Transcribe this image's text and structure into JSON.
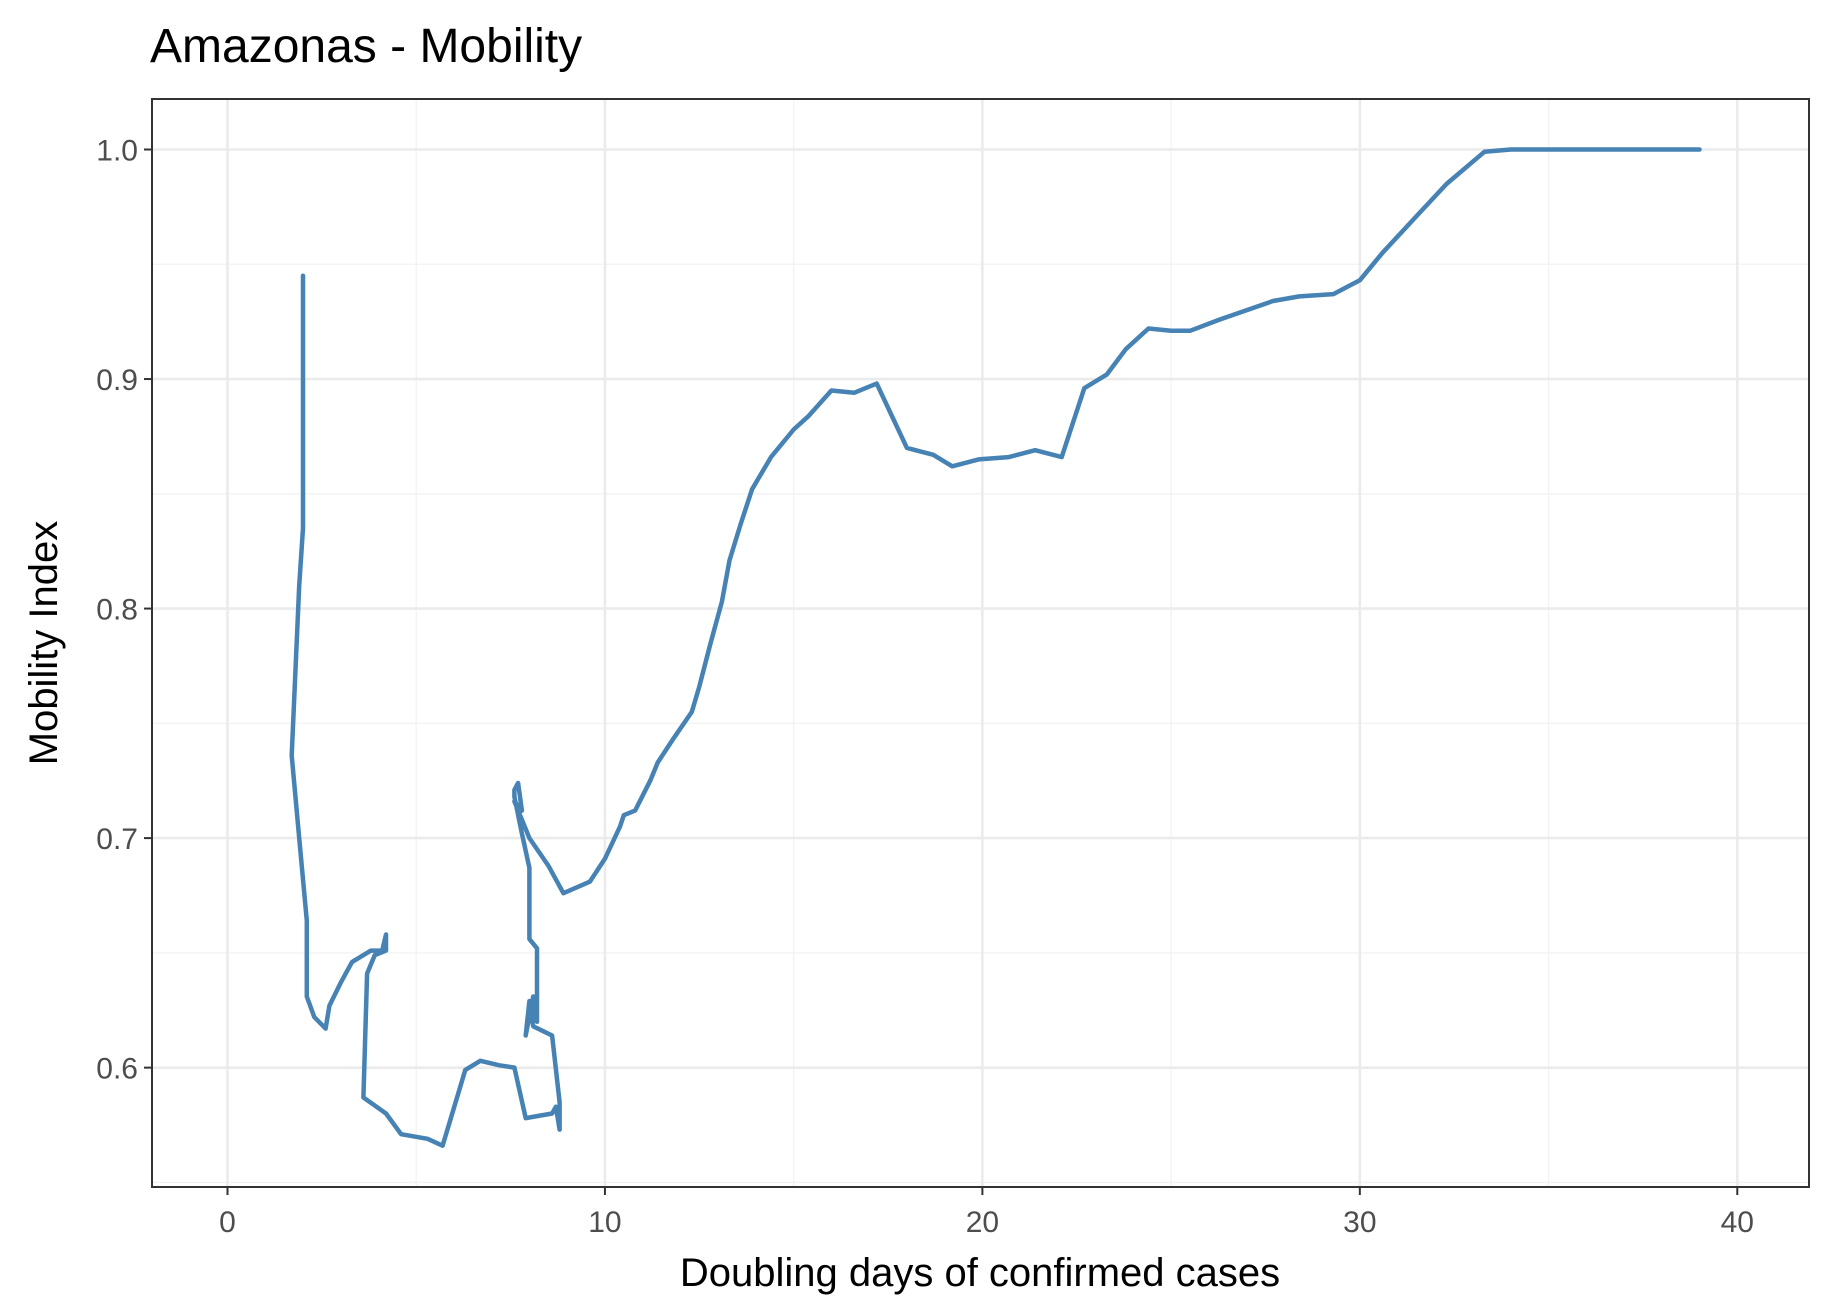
{
  "chart_data": {
    "type": "line",
    "title": "Amazonas - Mobility",
    "xlabel": "Doubling days of confirmed cases",
    "ylabel": "Mobility Index",
    "xlim": [
      -2,
      41.9
    ],
    "ylim": [
      0.548,
      1.022
    ],
    "xticks": [
      0,
      10,
      20,
      30,
      40
    ],
    "xtick_labels": [
      "0",
      "10",
      "20",
      "30",
      "40"
    ],
    "yticks": [
      0.6,
      0.7,
      0.8,
      0.9,
      1.0
    ],
    "ytick_labels": [
      "0.6",
      "0.7",
      "0.8",
      "0.9",
      "1.0"
    ],
    "xminor": [
      5,
      15,
      25,
      35
    ],
    "yminor": [
      0.55,
      0.65,
      0.75,
      0.85,
      0.95
    ],
    "grid": true,
    "legend": "none",
    "series": [
      {
        "color": "#4682b4",
        "points": [
          [
            2.0,
            0.945
          ],
          [
            2.0,
            0.835
          ],
          [
            1.9,
            0.81
          ],
          [
            1.7,
            0.736
          ],
          [
            1.9,
            0.7
          ],
          [
            2.1,
            0.664
          ],
          [
            2.1,
            0.631
          ],
          [
            2.3,
            0.622
          ],
          [
            2.6,
            0.617
          ],
          [
            2.7,
            0.627
          ],
          [
            3.0,
            0.637
          ],
          [
            3.3,
            0.646
          ],
          [
            3.8,
            0.651
          ],
          [
            4.1,
            0.651
          ],
          [
            4.2,
            0.658
          ],
          [
            4.2,
            0.651
          ],
          [
            3.9,
            0.649
          ],
          [
            3.7,
            0.641
          ],
          [
            3.6,
            0.587
          ],
          [
            4.2,
            0.58
          ],
          [
            4.6,
            0.571
          ],
          [
            5.3,
            0.569
          ],
          [
            5.7,
            0.566
          ],
          [
            6.3,
            0.599
          ],
          [
            6.7,
            0.603
          ],
          [
            7.2,
            0.601
          ],
          [
            7.6,
            0.6
          ],
          [
            7.9,
            0.578
          ],
          [
            8.6,
            0.58
          ],
          [
            8.7,
            0.583
          ],
          [
            8.8,
            0.573
          ],
          [
            8.8,
            0.585
          ],
          [
            8.6,
            0.614
          ],
          [
            8.1,
            0.618
          ],
          [
            8.0,
            0.629
          ],
          [
            7.9,
            0.614
          ],
          [
            8.1,
            0.631
          ],
          [
            8.2,
            0.62
          ],
          [
            8.2,
            0.652
          ],
          [
            8.0,
            0.656
          ],
          [
            8.0,
            0.687
          ],
          [
            7.8,
            0.702
          ],
          [
            7.6,
            0.718
          ],
          [
            7.6,
            0.721
          ],
          [
            7.7,
            0.724
          ],
          [
            7.8,
            0.712
          ],
          [
            7.6,
            0.716
          ],
          [
            8.0,
            0.7
          ],
          [
            8.5,
            0.688
          ],
          [
            8.9,
            0.676
          ],
          [
            9.6,
            0.681
          ],
          [
            10.0,
            0.691
          ],
          [
            10.4,
            0.705
          ],
          [
            10.5,
            0.71
          ],
          [
            10.8,
            0.712
          ],
          [
            11.2,
            0.725
          ],
          [
            11.4,
            0.733
          ],
          [
            11.8,
            0.743
          ],
          [
            12.3,
            0.755
          ],
          [
            12.5,
            0.766
          ],
          [
            12.8,
            0.785
          ],
          [
            13.1,
            0.803
          ],
          [
            13.3,
            0.821
          ],
          [
            13.6,
            0.837
          ],
          [
            13.9,
            0.852
          ],
          [
            14.4,
            0.866
          ],
          [
            15.0,
            0.878
          ],
          [
            15.4,
            0.884
          ],
          [
            16.0,
            0.895
          ],
          [
            16.6,
            0.894
          ],
          [
            17.2,
            0.898
          ],
          [
            18.0,
            0.87
          ],
          [
            18.7,
            0.867
          ],
          [
            19.2,
            0.862
          ],
          [
            19.9,
            0.865
          ],
          [
            20.7,
            0.866
          ],
          [
            21.4,
            0.869
          ],
          [
            22.1,
            0.866
          ],
          [
            22.7,
            0.896
          ],
          [
            23.3,
            0.902
          ],
          [
            23.8,
            0.913
          ],
          [
            24.4,
            0.922
          ],
          [
            25.0,
            0.921
          ],
          [
            25.5,
            0.921
          ],
          [
            26.3,
            0.926
          ],
          [
            27.7,
            0.934
          ],
          [
            28.4,
            0.936
          ],
          [
            29.3,
            0.937
          ],
          [
            30.0,
            0.943
          ],
          [
            30.6,
            0.955
          ],
          [
            31.5,
            0.971
          ],
          [
            32.3,
            0.985
          ],
          [
            33.3,
            0.999
          ],
          [
            34.0,
            1.0
          ],
          [
            36.0,
            1.0
          ],
          [
            39.0,
            1.0
          ]
        ]
      }
    ]
  }
}
